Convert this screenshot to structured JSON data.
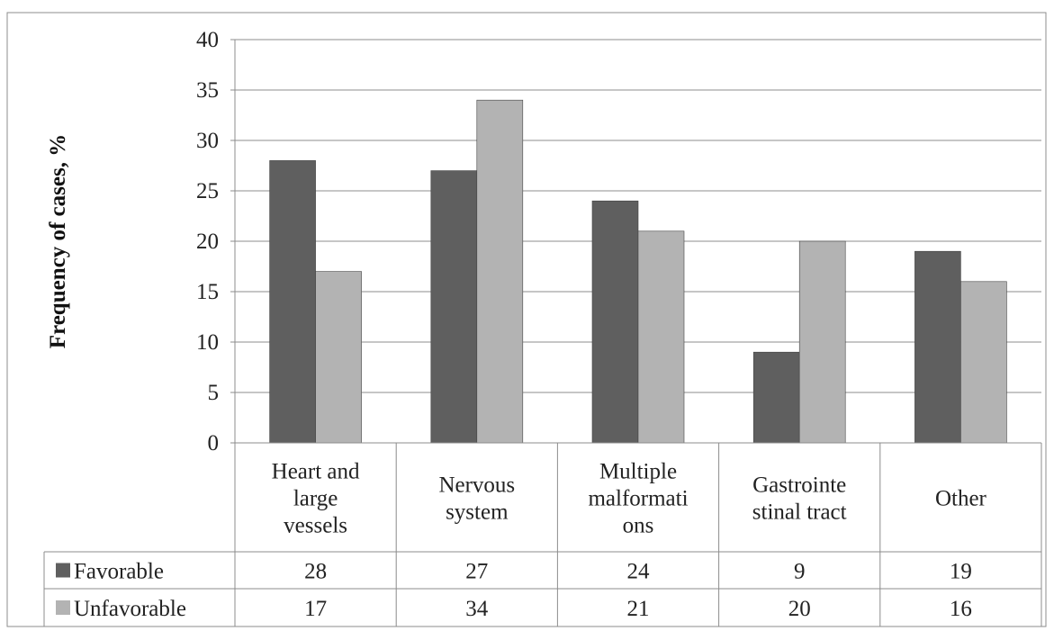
{
  "chart_data": {
    "type": "bar",
    "title": "",
    "xlabel": "",
    "ylabel": "Frequency of cases,  %",
    "ylim": [
      0,
      40
    ],
    "yticks": [
      0,
      5,
      10,
      15,
      20,
      25,
      30,
      35,
      40
    ],
    "grid": true,
    "legend": "data table below chart",
    "categories": [
      [
        "Heart and",
        "large",
        "vessels"
      ],
      [
        "Nervous",
        "system"
      ],
      [
        "Multiple",
        "malformati",
        "ons"
      ],
      [
        "Gastrointe",
        "stinal tract"
      ],
      [
        "Other"
      ]
    ],
    "series": [
      {
        "name": "Favorable",
        "color": "#5f5f5f",
        "values": [
          28,
          27,
          24,
          9,
          19
        ]
      },
      {
        "name": "Unfavorable",
        "color": "#b3b3b3",
        "values": [
          17,
          34,
          21,
          20,
          16
        ]
      }
    ]
  }
}
